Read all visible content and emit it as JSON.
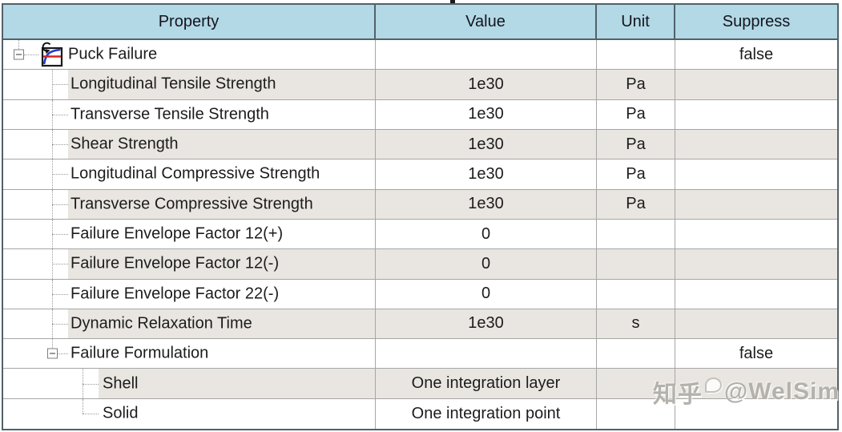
{
  "header": {
    "columns": [
      "Property",
      "Value",
      "Unit",
      "Suppress"
    ]
  },
  "rows": [
    {
      "property": "Puck Failure",
      "value": "",
      "unit": "",
      "suppress": "false",
      "level": 1,
      "shaded": false,
      "expander": true,
      "icon": "puck-failure-chart-icon",
      "spine": "above"
    },
    {
      "property": "Longitudinal Tensile Strength",
      "value": "1e30",
      "unit": "Pa",
      "suppress": "",
      "level": 2,
      "shaded": true,
      "spine": "full"
    },
    {
      "property": "Transverse Tensile Strength",
      "value": "1e30",
      "unit": "Pa",
      "suppress": "",
      "level": 2,
      "shaded": false,
      "spine": "full"
    },
    {
      "property": "Shear Strength",
      "value": "1e30",
      "unit": "Pa",
      "suppress": "",
      "level": 2,
      "shaded": true,
      "spine": "full"
    },
    {
      "property": "Longitudinal Compressive Strength",
      "value": "1e30",
      "unit": "Pa",
      "suppress": "",
      "level": 2,
      "shaded": false,
      "spine": "full"
    },
    {
      "property": "Transverse Compressive Strength",
      "value": "1e30",
      "unit": "Pa",
      "suppress": "",
      "level": 2,
      "shaded": true,
      "spine": "full"
    },
    {
      "property": "Failure Envelope Factor 12(+)",
      "value": "0",
      "unit": "",
      "suppress": "",
      "level": 2,
      "shaded": false,
      "spine": "full"
    },
    {
      "property": "Failure Envelope Factor 12(-)",
      "value": "0",
      "unit": "",
      "suppress": "",
      "level": 2,
      "shaded": true,
      "spine": "full"
    },
    {
      "property": "Failure Envelope Factor 22(-)",
      "value": "0",
      "unit": "",
      "suppress": "",
      "level": 2,
      "shaded": false,
      "spine": "full"
    },
    {
      "property": "Dynamic Relaxation Time",
      "value": "1e30",
      "unit": "s",
      "suppress": "",
      "level": 2,
      "shaded": true,
      "spine": "full"
    },
    {
      "property": "Failure Formulation",
      "value": "",
      "unit": "",
      "suppress": "false",
      "level": 2,
      "shaded": false,
      "expander": true,
      "spine": "above"
    },
    {
      "property": "Shell",
      "value": "One integration layer",
      "unit": "",
      "suppress": "",
      "level": 3,
      "shaded": true,
      "spine": "full"
    },
    {
      "property": "Solid",
      "value": "One integration point",
      "unit": "",
      "suppress": "",
      "level": 3,
      "shaded": false,
      "spine": "half"
    }
  ],
  "watermark": {
    "site": "知乎",
    "handle": "@WelSim"
  },
  "icons": [
    "puck-failure-chart-icon",
    "zhihu-bubble-icon",
    "expander-minus-icon"
  ],
  "colors": {
    "header_bg": "#b2d9e5",
    "border_dark": "#51626a",
    "grid_line": "#a6a6a6",
    "row_shade": "#e9e6e1",
    "tree_line": "#999999",
    "icon_curve_blue": "#2438c8",
    "icon_line_red": "#d42424",
    "text": "#1c1c1c",
    "watermark_text": "#a8a49f"
  }
}
